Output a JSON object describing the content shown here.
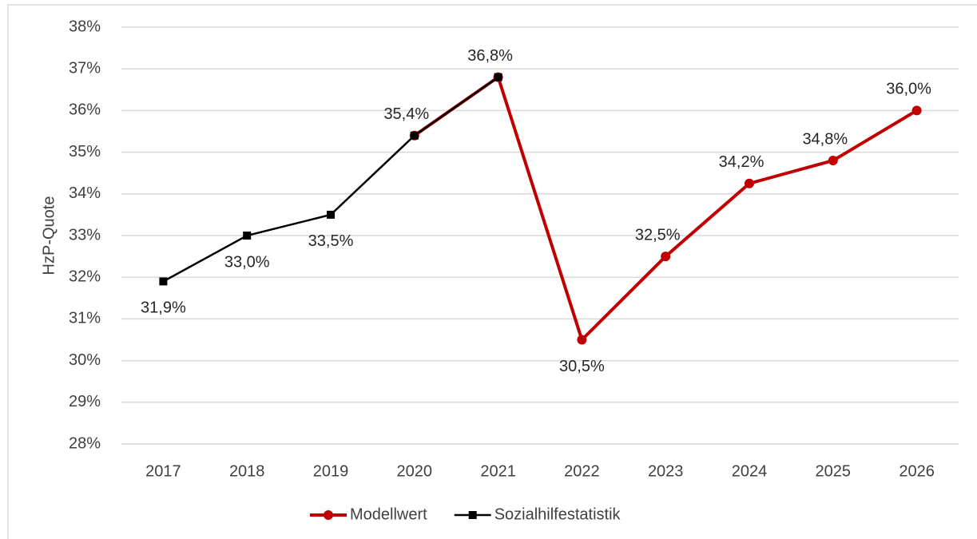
{
  "chart_data": {
    "type": "line",
    "y_label": "HzP-Quote",
    "categories": [
      "2017",
      "2018",
      "2019",
      "2020",
      "2021",
      "2022",
      "2023",
      "2024",
      "2025",
      "2026"
    ],
    "series": [
      {
        "name": "Modellwert",
        "color": "#c00000",
        "values": [
          null,
          null,
          null,
          35.4,
          36.8,
          30.5,
          32.5,
          34.25,
          34.8,
          36.0
        ],
        "value_labels": [
          null,
          null,
          null,
          null,
          null,
          "30,5%",
          "32,5%",
          "34,2%",
          "34,8%",
          "36,0%"
        ]
      },
      {
        "name": "Sozialhilfestatistik",
        "color": "#000000",
        "values": [
          31.9,
          33.0,
          33.5,
          35.4,
          36.8,
          null,
          null,
          null,
          null,
          null
        ],
        "value_labels": [
          "31,9%",
          "33,0%",
          "33,5%",
          "35,4%",
          "36,8%",
          null,
          null,
          null,
          null,
          null
        ]
      }
    ],
    "ylim": [
      28,
      38
    ],
    "yticks": [
      {
        "value": 28,
        "label": "28%"
      },
      {
        "value": 29,
        "label": "29%"
      },
      {
        "value": 30,
        "label": "30%"
      },
      {
        "value": 31,
        "label": "31%"
      },
      {
        "value": 32,
        "label": "32%"
      },
      {
        "value": 33,
        "label": "33%"
      },
      {
        "value": 34,
        "label": "34%"
      },
      {
        "value": 35,
        "label": "35%"
      },
      {
        "value": 36,
        "label": "36%"
      },
      {
        "value": 37,
        "label": "37%"
      },
      {
        "value": 38,
        "label": "38%"
      }
    ],
    "grid": true,
    "legend": "bottom"
  }
}
